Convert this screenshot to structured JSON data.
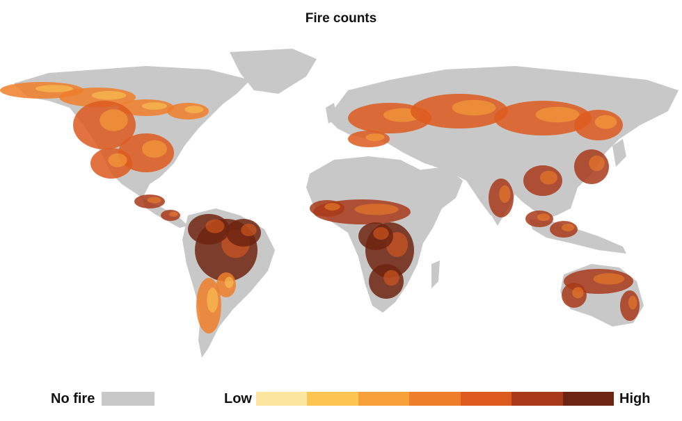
{
  "title": "Fire counts",
  "legend": {
    "no_fire_label": "No fire",
    "no_fire_color": "#c8c8c8",
    "low_label": "Low",
    "high_label": "High",
    "scale_colors": [
      "#fde6a0",
      "#fcc552",
      "#f8a13a",
      "#ef7e2a",
      "#dd5a1f",
      "#a8391a",
      "#6e2412"
    ]
  },
  "map": {
    "land_no_fire_color": "#c8c8c8",
    "fire_regions": [
      {
        "region": "Boreal North America",
        "level": 3
      },
      {
        "region": "Eastern United States",
        "level": 4
      },
      {
        "region": "Central America",
        "level": 5
      },
      {
        "region": "Amazon / Brazil",
        "level": 6
      },
      {
        "region": "Southern South America",
        "level": 3
      },
      {
        "region": "Sahel",
        "level": 5
      },
      {
        "region": "Central & Southern Africa",
        "level": 6
      },
      {
        "region": "Europe & Russia",
        "level": 4
      },
      {
        "region": "South & Southeast Asia",
        "level": 5
      },
      {
        "region": "Northern Australia",
        "level": 5
      }
    ]
  }
}
